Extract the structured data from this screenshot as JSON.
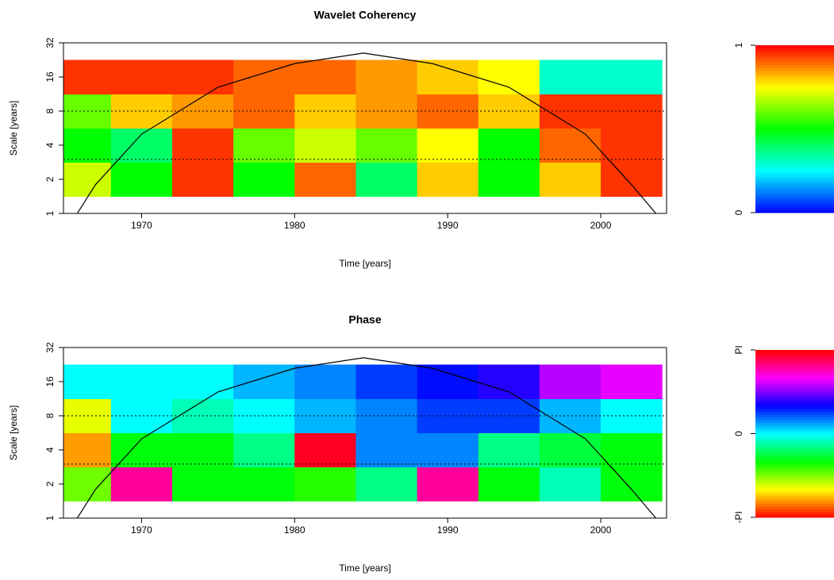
{
  "chart_data": [
    {
      "type": "heatmap",
      "title": "Wavelet Coherency",
      "xlabel": "Time [years]",
      "ylabel": "Scale [years]",
      "colormap": "rainbow",
      "x": [
        1966,
        1970,
        1974,
        1978,
        1982,
        1986,
        1990,
        1994,
        1998,
        2002
      ],
      "y": [
        2,
        4,
        8,
        16
      ],
      "z": [
        [
          0.7,
          0.5,
          0.95,
          0.5,
          0.9,
          0.4,
          0.8,
          0.5,
          0.8,
          0.95
        ],
        [
          0.5,
          0.4,
          0.95,
          0.6,
          0.7,
          0.6,
          0.75,
          0.5,
          0.9,
          0.95
        ],
        [
          0.6,
          0.8,
          0.85,
          0.9,
          0.8,
          0.85,
          0.9,
          0.8,
          0.95,
          0.95
        ],
        [
          0.95,
          0.95,
          0.95,
          0.9,
          0.9,
          0.85,
          0.8,
          0.75,
          0.3,
          0.3
        ]
      ],
      "xlim": [
        1964.9,
        2004.3
      ],
      "xticks": [
        1970,
        1980,
        1990,
        2000
      ],
      "ylim": [
        1,
        32
      ],
      "yticks": [
        1,
        2,
        4,
        8,
        16,
        32
      ],
      "log_y": true,
      "hlines": [
        3,
        8
      ],
      "coi": {
        "x": [
          1965.8,
          1967,
          1970,
          1975,
          1980,
          1984.5,
          1989,
          1994,
          1999,
          2002,
          2003.6
        ],
        "y": [
          1,
          1.8,
          5,
          13,
          21,
          26,
          21,
          13,
          5,
          1.8,
          1
        ]
      },
      "colorbar": {
        "lim": [
          0,
          1
        ],
        "ticks": [
          0,
          1
        ]
      }
    },
    {
      "type": "heatmap",
      "title": "Phase",
      "xlabel": "Time [years]",
      "ylabel": "Scale [years]",
      "colormap": "phase",
      "x": [
        1966,
        1970,
        1974,
        1978,
        1982,
        1986,
        1990,
        1994,
        1998,
        2002
      ],
      "y": [
        2,
        4,
        8,
        16
      ],
      "z": [
        [
          -1.5,
          2.5,
          -1,
          -1,
          -1.2,
          -0.5,
          2.5,
          -1,
          -0.3,
          -1
        ],
        [
          -2.5,
          -1,
          -1,
          -0.5,
          3,
          0.5,
          0.5,
          -0.5,
          -0.8,
          -1
        ],
        [
          -2,
          0,
          -0.3,
          0,
          0.3,
          0.5,
          0.8,
          0.8,
          0.3,
          0
        ],
        [
          0,
          0,
          0,
          0.3,
          0.5,
          0.8,
          1.0,
          1.2,
          1.8,
          2.0
        ]
      ],
      "xlim": [
        1964.9,
        2004.3
      ],
      "xticks": [
        1970,
        1980,
        1990,
        2000
      ],
      "ylim": [
        1,
        32
      ],
      "yticks": [
        1,
        2,
        4,
        8,
        16,
        32
      ],
      "log_y": true,
      "hlines": [
        3,
        8
      ],
      "coi": {
        "x": [
          1965.8,
          1967,
          1970,
          1975,
          1980,
          1984.5,
          1989,
          1994,
          1999,
          2002,
          2003.6
        ],
        "y": [
          1,
          1.8,
          5,
          13,
          21,
          26,
          21,
          13,
          5,
          1.8,
          1
        ]
      },
      "colorbar": {
        "lim": [
          -3.14159,
          3.14159
        ],
        "ticks": [
          {
            "value": -3.14159,
            "label": "-PI"
          },
          0,
          {
            "value": 3.14159,
            "label": "PI"
          }
        ]
      }
    }
  ]
}
